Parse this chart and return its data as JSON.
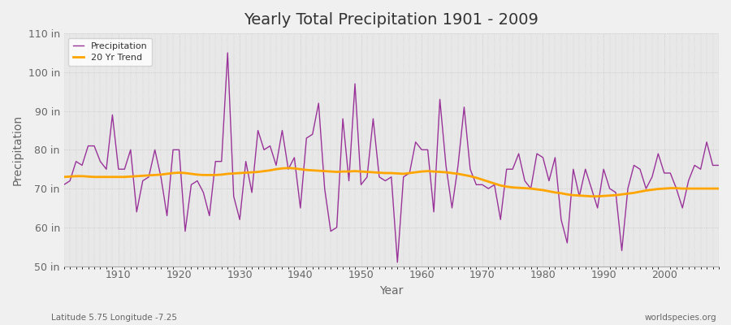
{
  "title": "Yearly Total Precipitation 1901 - 2009",
  "xlabel": "Year",
  "ylabel": "Precipitation",
  "subtitle": "Latitude 5.75 Longitude -7.25",
  "watermark": "worldspecies.org",
  "ylim": [
    50,
    110
  ],
  "yticks": [
    50,
    60,
    70,
    80,
    90,
    100,
    110
  ],
  "ytick_labels": [
    "50 in",
    "60 in",
    "70 in",
    "80 in",
    "90 in",
    "100 in",
    "110 in"
  ],
  "xlim": [
    1901,
    2009
  ],
  "xticks": [
    1910,
    1920,
    1930,
    1940,
    1950,
    1960,
    1970,
    1980,
    1990,
    2000
  ],
  "precip_color": "#993399",
  "trend_color": "#FFA500",
  "bg_color": "#F0F0F0",
  "plot_bg_color": "#E8E8E8",
  "text_color": "#666666",
  "title_color": "#333333",
  "years": [
    1901,
    1902,
    1903,
    1904,
    1905,
    1906,
    1907,
    1908,
    1909,
    1910,
    1911,
    1912,
    1913,
    1914,
    1915,
    1916,
    1917,
    1918,
    1919,
    1920,
    1921,
    1922,
    1923,
    1924,
    1925,
    1926,
    1927,
    1928,
    1929,
    1930,
    1931,
    1932,
    1933,
    1934,
    1935,
    1936,
    1937,
    1938,
    1939,
    1940,
    1941,
    1942,
    1943,
    1944,
    1945,
    1946,
    1947,
    1948,
    1949,
    1950,
    1951,
    1952,
    1953,
    1954,
    1955,
    1956,
    1957,
    1958,
    1959,
    1960,
    1961,
    1962,
    1963,
    1964,
    1965,
    1966,
    1967,
    1968,
    1969,
    1970,
    1971,
    1972,
    1973,
    1974,
    1975,
    1976,
    1977,
    1978,
    1979,
    1980,
    1981,
    1982,
    1983,
    1984,
    1985,
    1986,
    1987,
    1988,
    1989,
    1990,
    1991,
    1992,
    1993,
    1994,
    1995,
    1996,
    1997,
    1998,
    1999,
    2000,
    2001,
    2002,
    2003,
    2004,
    2005,
    2006,
    2007,
    2008,
    2009
  ],
  "precip": [
    71,
    72,
    77,
    76,
    81,
    81,
    77,
    75,
    89,
    75,
    75,
    80,
    64,
    72,
    73,
    80,
    73,
    63,
    80,
    80,
    59,
    71,
    72,
    69,
    63,
    77,
    77,
    105,
    68,
    62,
    77,
    69,
    85,
    80,
    81,
    76,
    85,
    75,
    78,
    65,
    83,
    84,
    92,
    70,
    59,
    60,
    88,
    72,
    97,
    71,
    73,
    88,
    73,
    72,
    73,
    51,
    73,
    74,
    82,
    80,
    80,
    64,
    93,
    76,
    65,
    76,
    91,
    75,
    71,
    71,
    70,
    71,
    62,
    75,
    75,
    79,
    72,
    70,
    79,
    78,
    72,
    78,
    62,
    56,
    75,
    68,
    75,
    70,
    65,
    75,
    70,
    69,
    54,
    70,
    76,
    75,
    70,
    73,
    79,
    74,
    74,
    70,
    65,
    72,
    76,
    75,
    82,
    76,
    76
  ],
  "trend": [
    73.0,
    73.1,
    73.2,
    73.2,
    73.1,
    73.0,
    73.0,
    73.0,
    73.0,
    73.0,
    73.0,
    73.1,
    73.2,
    73.3,
    73.4,
    73.5,
    73.6,
    73.8,
    74.0,
    74.1,
    74.0,
    73.8,
    73.6,
    73.5,
    73.5,
    73.5,
    73.6,
    73.8,
    73.9,
    74.0,
    74.1,
    74.2,
    74.3,
    74.5,
    74.7,
    75.0,
    75.2,
    75.3,
    75.2,
    75.0,
    74.8,
    74.7,
    74.6,
    74.5,
    74.4,
    74.3,
    74.4,
    74.4,
    74.5,
    74.4,
    74.3,
    74.2,
    74.1,
    74.0,
    74.0,
    73.9,
    73.8,
    74.0,
    74.2,
    74.4,
    74.5,
    74.4,
    74.3,
    74.2,
    74.0,
    73.8,
    73.5,
    73.2,
    72.8,
    72.3,
    71.8,
    71.3,
    70.8,
    70.5,
    70.3,
    70.2,
    70.1,
    70.0,
    69.8,
    69.6,
    69.3,
    69.0,
    68.8,
    68.5,
    68.3,
    68.2,
    68.1,
    68.0,
    68.0,
    68.1,
    68.2,
    68.3,
    68.5,
    68.7,
    68.9,
    69.2,
    69.5,
    69.7,
    69.9,
    70.0,
    70.1,
    70.1,
    70.0,
    70.0,
    70.0,
    70.0,
    70.0,
    70.0,
    70.0
  ]
}
